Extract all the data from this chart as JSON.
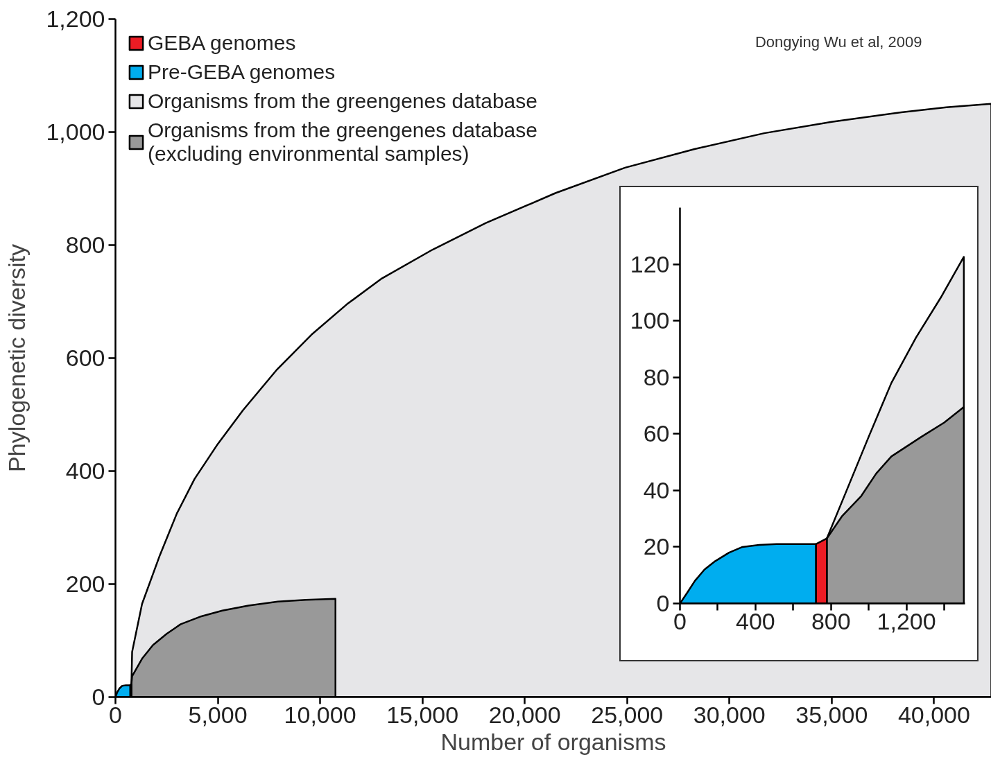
{
  "chart_data": [
    {
      "type": "area",
      "xlabel": "Number of organisms",
      "ylabel": "Phylogenetic diversity",
      "annotations": [
        "Dongying Wu et al, 2009"
      ],
      "legend": "top left",
      "grid": false,
      "xlim": [
        0,
        42800
      ],
      "ylim": [
        0,
        1200
      ],
      "xticks": [
        0,
        {
          "value": 5000,
          "label": "5,000"
        },
        {
          "value": 10000,
          "label": "10,000"
        },
        {
          "value": 15000,
          "label": "15,000"
        },
        {
          "value": 20000,
          "label": "20,000"
        },
        {
          "value": 25000,
          "label": "25,000"
        },
        {
          "value": 30000,
          "label": "30,000"
        },
        {
          "value": 35000,
          "label": "35,000"
        },
        {
          "value": 40000,
          "label": "40,000"
        }
      ],
      "yticks": [
        0,
        200,
        400,
        600,
        800,
        {
          "value": 1000,
          "label": "1,000"
        },
        {
          "value": 1200,
          "label": "1,200"
        }
      ],
      "series": [
        {
          "name": "GEBA genomes",
          "color": "#ec1c24",
          "x": [
            720,
            778
          ],
          "values": [
            21,
            23
          ]
        },
        {
          "name": "Pre-GEBA genomes",
          "color": "#00adef",
          "x": [
            0,
            79,
            187,
            331,
            512,
            720
          ],
          "values": [
            0,
            8,
            15,
            20,
            21,
            21
          ]
        },
        {
          "name": "Organisms from the greengenes database",
          "color": "#e6e6e8",
          "x": [
            780,
            814,
            1300,
            2169,
            3000,
            3864,
            5000,
            6237,
            7900,
            9627,
            11300,
            13020,
            15500,
            18100,
            21500,
            24900,
            28300,
            31700,
            35000,
            38400,
            40600,
            42800
          ],
          "values": [
            23,
            80,
            165,
            251,
            325,
            386,
            448,
            508,
            580,
            643,
            695,
            741,
            792,
            839,
            892,
            937,
            970,
            998,
            1018,
            1035,
            1044,
            1050
          ]
        },
        {
          "name": "Organisms from the greengenes database\n(excluding environmental samples)",
          "color": "#999999",
          "x": [
            780,
            814,
            1300,
            1831,
            2500,
            3186,
            4200,
            5220,
            6500,
            7932,
            9300,
            10750
          ],
          "values": [
            23,
            37,
            68,
            92,
            112,
            129,
            143,
            153,
            162,
            169,
            172,
            174
          ]
        }
      ]
    },
    {
      "type": "area",
      "grid": false,
      "legend": false,
      "xlim": [
        0,
        1510
      ],
      "ylim": [
        0,
        140
      ],
      "xticks": [
        0,
        {
          "value": 200,
          "label": null
        },
        400,
        {
          "value": 600,
          "label": null
        },
        800,
        {
          "value": 1000,
          "label": null
        },
        {
          "value": 1200,
          "label": "1,200"
        },
        {
          "value": 1400,
          "label": null
        }
      ],
      "yticks": [
        0,
        20,
        40,
        60,
        80,
        100,
        120
      ],
      "series": [
        {
          "color": "#ec1c24",
          "x": [
            720,
            778
          ],
          "values": [
            21,
            23
          ]
        },
        {
          "color": "#00adef",
          "x": [
            0,
            40,
            79,
            130,
            187,
            260,
            331,
            420,
            512,
            720
          ],
          "values": [
            0,
            4,
            8,
            12,
            15,
            18,
            20,
            20.7,
            21,
            21
          ]
        },
        {
          "color": "#e6e6e8",
          "x": [
            778,
            880,
            1000,
            1120,
            1250,
            1380,
            1504
          ],
          "values": [
            23,
            39.5,
            59,
            78,
            94,
            108,
            122.6
          ]
        },
        {
          "color": "#999999",
          "x": [
            778,
            860,
            960,
            1040,
            1120,
            1280,
            1400,
            1504
          ],
          "values": [
            23,
            31,
            38,
            46,
            52,
            59,
            64,
            69.5
          ]
        }
      ]
    }
  ]
}
